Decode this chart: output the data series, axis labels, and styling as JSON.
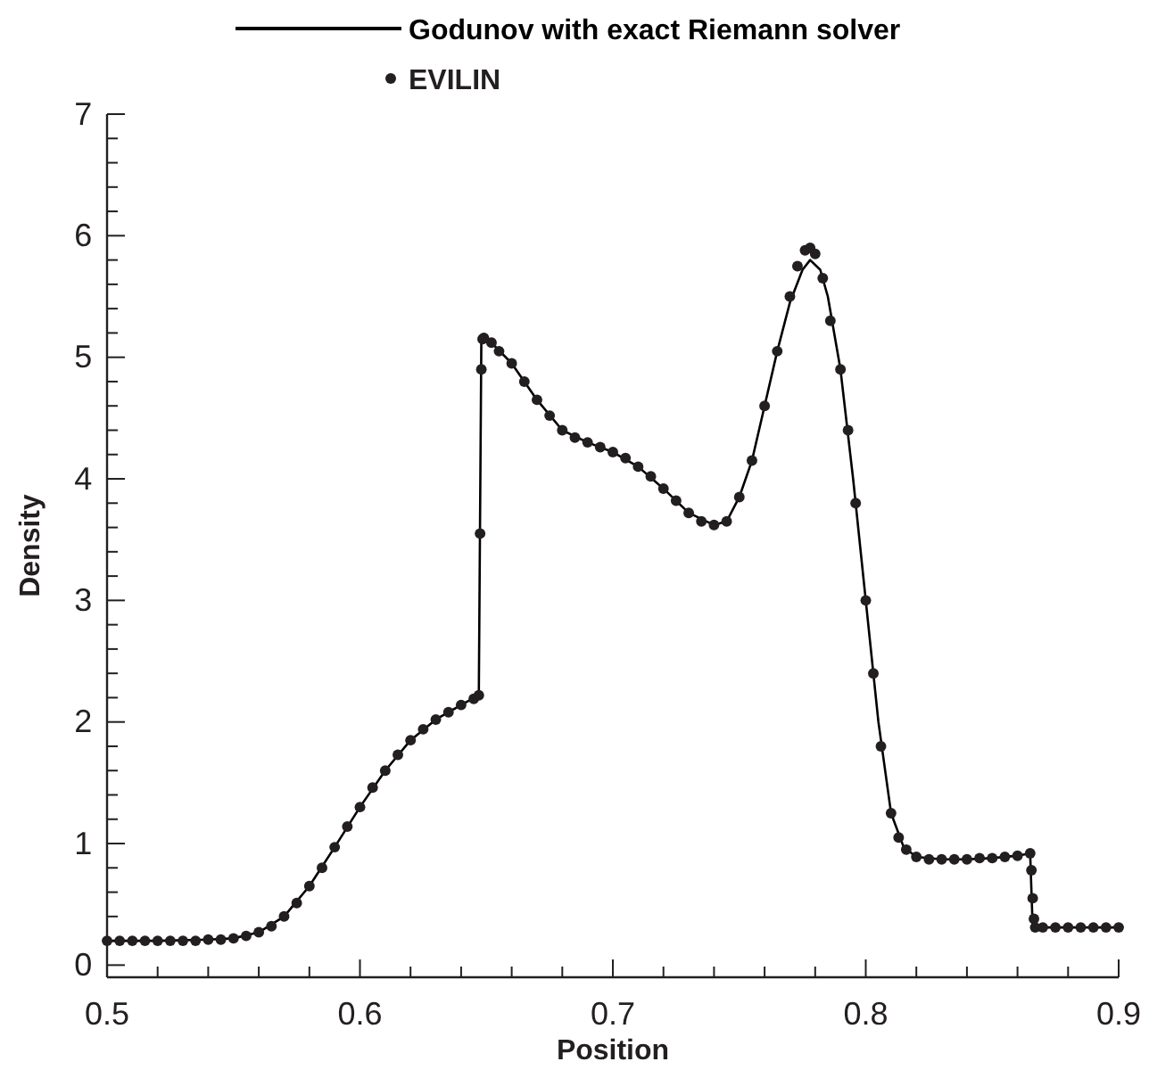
{
  "chart_data": {
    "type": "line",
    "xlabel": "Position",
    "ylabel": "Density",
    "xlim": [
      0.5,
      0.9
    ],
    "ylim": [
      -0.1,
      7
    ],
    "xticks": [
      0.5,
      {
        "value": 0.52,
        "label": null
      },
      {
        "value": 0.54,
        "label": null
      },
      {
        "value": 0.56,
        "label": null
      },
      {
        "value": 0.58,
        "label": null
      },
      0.6,
      {
        "value": 0.62,
        "label": null
      },
      {
        "value": 0.64,
        "label": null
      },
      {
        "value": 0.66,
        "label": null
      },
      {
        "value": 0.68,
        "label": null
      },
      0.7,
      {
        "value": 0.72,
        "label": null
      },
      {
        "value": 0.74,
        "label": null
      },
      {
        "value": 0.76,
        "label": null
      },
      {
        "value": 0.78,
        "label": null
      },
      0.8,
      {
        "value": 0.82,
        "label": null
      },
      {
        "value": 0.84,
        "label": null
      },
      {
        "value": 0.86,
        "label": null
      },
      {
        "value": 0.88,
        "label": null
      },
      0.9
    ],
    "yticks": [
      0,
      {
        "value": 0.2,
        "label": null
      },
      {
        "value": 0.4,
        "label": null
      },
      {
        "value": 0.6,
        "label": null
      },
      {
        "value": 0.8,
        "label": null
      },
      1,
      {
        "value": 1.2,
        "label": null
      },
      {
        "value": 1.4,
        "label": null
      },
      {
        "value": 1.6,
        "label": null
      },
      {
        "value": 1.8,
        "label": null
      },
      2,
      {
        "value": 2.2,
        "label": null
      },
      {
        "value": 2.4,
        "label": null
      },
      {
        "value": 2.6,
        "label": null
      },
      {
        "value": 2.8,
        "label": null
      },
      3,
      {
        "value": 3.2,
        "label": null
      },
      {
        "value": 3.4,
        "label": null
      },
      {
        "value": 3.6,
        "label": null
      },
      {
        "value": 3.8,
        "label": null
      },
      4,
      {
        "value": 4.2,
        "label": null
      },
      {
        "value": 4.4,
        "label": null
      },
      {
        "value": 4.6,
        "label": null
      },
      {
        "value": 4.8,
        "label": null
      },
      5,
      {
        "value": 5.2,
        "label": null
      },
      {
        "value": 5.4,
        "label": null
      },
      {
        "value": 5.6,
        "label": null
      },
      {
        "value": 5.8,
        "label": null
      },
      6,
      {
        "value": 6.2,
        "label": null
      },
      {
        "value": 6.4,
        "label": null
      },
      {
        "value": 6.6,
        "label": null
      },
      {
        "value": 6.8,
        "label": null
      },
      7
    ],
    "legend": "top",
    "grid": false,
    "series": [
      {
        "name": "Godunov with exact Riemann solver",
        "type": "line",
        "marker": "none",
        "color": "#000000",
        "x": [
          0.5,
          0.52,
          0.54,
          0.55,
          0.56,
          0.57,
          0.58,
          0.59,
          0.6,
          0.61,
          0.62,
          0.63,
          0.64,
          0.647,
          0.648,
          0.652,
          0.66,
          0.67,
          0.68,
          0.69,
          0.7,
          0.71,
          0.72,
          0.73,
          0.74,
          0.745,
          0.75,
          0.755,
          0.76,
          0.765,
          0.77,
          0.775,
          0.778,
          0.782,
          0.785,
          0.79,
          0.795,
          0.8,
          0.805,
          0.81,
          0.815,
          0.82,
          0.83,
          0.84,
          0.85,
          0.86,
          0.865,
          0.866,
          0.88,
          0.9
        ],
        "values": [
          0.2,
          0.2,
          0.21,
          0.22,
          0.27,
          0.4,
          0.65,
          0.97,
          1.3,
          1.6,
          1.85,
          2.02,
          2.14,
          2.22,
          5.15,
          5.12,
          4.95,
          4.65,
          4.4,
          4.3,
          4.22,
          4.1,
          3.92,
          3.72,
          3.62,
          3.65,
          3.85,
          4.15,
          4.6,
          5.05,
          5.45,
          5.72,
          5.8,
          5.72,
          5.5,
          4.9,
          4.0,
          3.0,
          2.0,
          1.25,
          0.97,
          0.89,
          0.87,
          0.87,
          0.88,
          0.9,
          0.92,
          0.31,
          0.31,
          0.31
        ]
      },
      {
        "name": "EVILIN",
        "type": "scatter",
        "marker": "circle",
        "color": "#231f20",
        "x": [
          0.5,
          0.505,
          0.51,
          0.515,
          0.52,
          0.525,
          0.53,
          0.535,
          0.54,
          0.545,
          0.55,
          0.555,
          0.56,
          0.565,
          0.57,
          0.575,
          0.58,
          0.585,
          0.59,
          0.595,
          0.6,
          0.605,
          0.61,
          0.615,
          0.62,
          0.625,
          0.63,
          0.635,
          0.64,
          0.645,
          0.647,
          0.6475,
          0.648,
          0.6485,
          0.649,
          0.652,
          0.655,
          0.66,
          0.665,
          0.67,
          0.675,
          0.68,
          0.685,
          0.69,
          0.695,
          0.7,
          0.705,
          0.71,
          0.715,
          0.72,
          0.725,
          0.73,
          0.735,
          0.74,
          0.745,
          0.75,
          0.755,
          0.76,
          0.765,
          0.77,
          0.773,
          0.776,
          0.778,
          0.78,
          0.783,
          0.786,
          0.79,
          0.793,
          0.796,
          0.8,
          0.803,
          0.806,
          0.81,
          0.813,
          0.816,
          0.82,
          0.825,
          0.83,
          0.835,
          0.84,
          0.845,
          0.85,
          0.855,
          0.86,
          0.865,
          0.8655,
          0.866,
          0.8665,
          0.867,
          0.87,
          0.875,
          0.88,
          0.885,
          0.89,
          0.895,
          0.9
        ],
        "values": [
          0.2,
          0.2,
          0.2,
          0.2,
          0.2,
          0.2,
          0.2,
          0.2,
          0.21,
          0.21,
          0.22,
          0.24,
          0.27,
          0.32,
          0.4,
          0.51,
          0.65,
          0.8,
          0.97,
          1.14,
          1.3,
          1.46,
          1.6,
          1.73,
          1.85,
          1.94,
          2.02,
          2.08,
          2.14,
          2.19,
          2.22,
          3.55,
          4.9,
          5.15,
          5.16,
          5.12,
          5.05,
          4.95,
          4.8,
          4.65,
          4.52,
          4.4,
          4.34,
          4.3,
          4.26,
          4.22,
          4.17,
          4.1,
          4.02,
          3.92,
          3.82,
          3.72,
          3.65,
          3.62,
          3.65,
          3.85,
          4.15,
          4.6,
          5.05,
          5.5,
          5.75,
          5.88,
          5.9,
          5.85,
          5.65,
          5.3,
          4.9,
          4.4,
          3.8,
          3.0,
          2.4,
          1.8,
          1.25,
          1.05,
          0.95,
          0.89,
          0.87,
          0.87,
          0.87,
          0.87,
          0.88,
          0.88,
          0.89,
          0.9,
          0.92,
          0.78,
          0.55,
          0.38,
          0.31,
          0.31,
          0.31,
          0.31,
          0.31,
          0.31,
          0.31,
          0.31
        ]
      }
    ]
  }
}
